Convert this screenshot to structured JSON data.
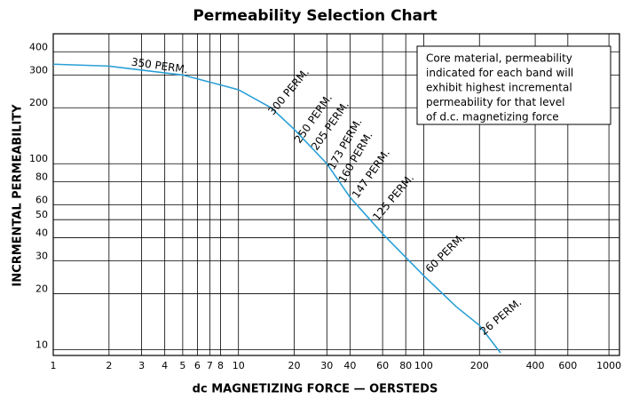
{
  "chart_data": {
    "type": "line",
    "title": "Permeability Selection Chart",
    "x_label": "dc MAGNETIZING FORCE — OERSTEDS",
    "y_label": "INCRMENTAL PERMEABILITY",
    "log_x": true,
    "log_y": true,
    "grid": true,
    "xlim": [
      1,
      1140
    ],
    "ylim": [
      9.3,
      500
    ],
    "xticks": [
      1,
      2,
      3,
      4,
      5,
      6,
      7,
      8,
      10,
      20,
      30,
      40,
      60,
      80,
      100,
      200,
      400,
      600,
      1000
    ],
    "yticks": [
      10,
      20,
      30,
      40,
      50,
      60,
      80,
      100,
      200,
      300,
      400
    ],
    "series": [
      {
        "name": "Incremental permeability",
        "color": "#2a9fd6",
        "x": [
          1,
          2,
          5,
          10,
          15,
          20,
          30,
          40,
          60,
          100,
          150,
          200,
          260
        ],
        "values": [
          343,
          335,
          300,
          250,
          200,
          153,
          100,
          66,
          42,
          25,
          17,
          13.5,
          9.6
        ]
      }
    ],
    "annotations": [
      "350 PERM.",
      "300 PERM.",
      "250 PERM.",
      "205 PERM.",
      "173 PERM.",
      "160 PERM.",
      "147 PERM.",
      "125 PERM.",
      "60 PERM.",
      "26 PERM."
    ],
    "note": [
      "Core material, permeability",
      "indicated for each band will",
      "exhibit highest incremental",
      "permeability for that level",
      "of d.c. magnetizing force"
    ]
  }
}
